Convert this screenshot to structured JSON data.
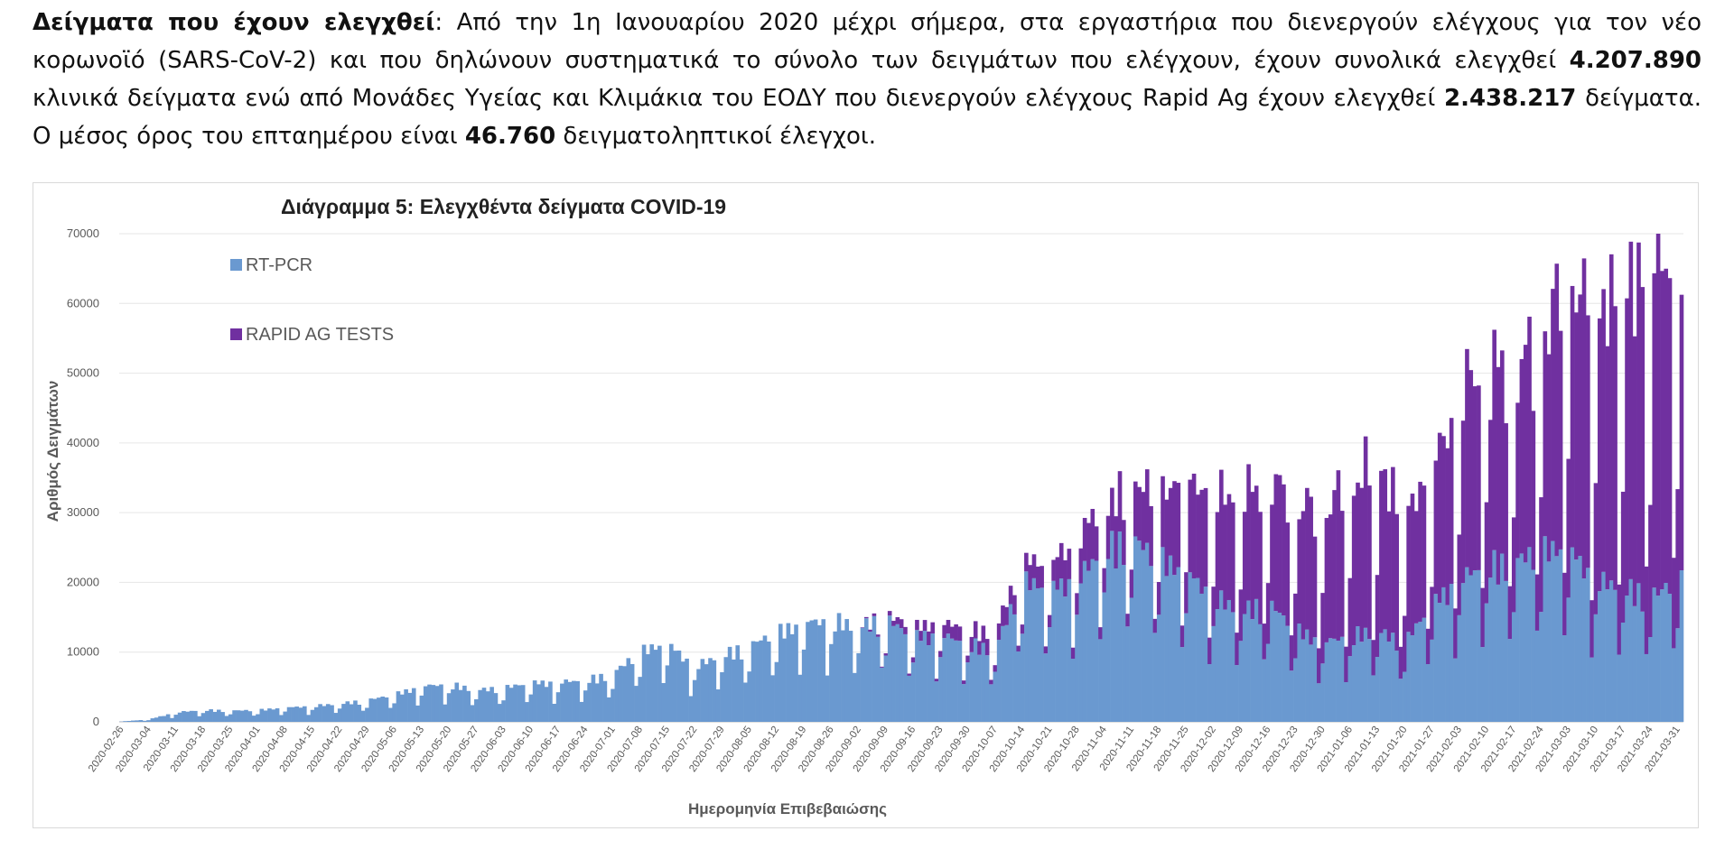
{
  "intro": {
    "lead_bold": "Δείγματα που έχουν ελεγχθεί",
    "part1": ": Από την 1η Ιανουαρίου 2020 μέχρι σήμερα, στα εργαστήρια που διενεργούν ελέγχους για τον νέο κορωνοϊό (SARS-CoV-2) και που δηλώνουν συστηματικά το σύνολο των δειγμάτων που ελέγχουν, έχουν συνολικά ελεγχθεί ",
    "total_pcr": "4.207.890",
    "part2": " κλινικά δείγματα ενώ από Μονάδες Υγείας και Κλιμάκια του ΕΟΔΥ που διενεργούν ελέγχους Rapid Ag έχουν ελεγχθεί ",
    "total_rapid": "2.438.217",
    "part3": " δείγματα. Ο μέσος όρος του επταημέρου είναι ",
    "weekly_avg": "46.760",
    "part4": " δειγματοληπτικοί έλεγχοι."
  },
  "chart_data": {
    "type": "bar",
    "stacked": true,
    "title": "Διάγραμμα 5: Ελεγχθέντα δείγματα COVID-19",
    "xlabel": "Ημερομηνία Επιβεβαιώσης",
    "ylabel": "Αριθμός Δειγμάτων",
    "ylim": [
      0,
      70000
    ],
    "yticks": [
      0,
      10000,
      20000,
      30000,
      40000,
      50000,
      60000,
      70000
    ],
    "grid": true,
    "legend_position": "top-left",
    "x_start": "2020-02-26",
    "x_end": "2021-04-02",
    "x_tick_labels": [
      "2020-02-26",
      "2020-03-04",
      "2020-03-11",
      "2020-03-18",
      "2020-03-25",
      "2020-04-01",
      "2020-04-08",
      "2020-04-15",
      "2020-04-22",
      "2020-04-29",
      "2020-05-06",
      "2020-05-13",
      "2020-05-20",
      "2020-05-27",
      "2020-06-03",
      "2020-06-10",
      "2020-06-17",
      "2020-06-24",
      "2020-07-01",
      "2020-07-08",
      "2020-07-15",
      "2020-07-22",
      "2020-07-29",
      "2020-08-05",
      "2020-08-12",
      "2020-08-19",
      "2020-08-26",
      "2020-09-02",
      "2020-09-09",
      "2020-09-16",
      "2020-09-23",
      "2020-09-30",
      "2020-10-07",
      "2020-10-14",
      "2020-10-21",
      "2020-10-28",
      "2020-11-04",
      "2020-11-11",
      "2020-11-18",
      "2020-11-25",
      "2020-12-02",
      "2020-12-09",
      "2020-12-16",
      "2020-12-23",
      "2020-12-30",
      "2021-01-06",
      "2021-01-13",
      "2021-01-20",
      "2021-01-27",
      "2021-02-03",
      "2021-02-10",
      "2021-02-17",
      "2021-02-24",
      "2021-03-03",
      "2021-03-10",
      "2021-03-17",
      "2021-03-24",
      "2021-03-31"
    ],
    "series": [
      {
        "name": "RT-PCR",
        "color": "#6a99d0",
        "weekly_values": [
          50,
          300,
          1200,
          1500,
          1400,
          1500,
          1800,
          2000,
          2300,
          2700,
          3500,
          4500,
          4800,
          4000,
          4300,
          5000,
          5000,
          5300,
          6000,
          9000,
          10000,
          7000,
          8500,
          9500,
          11500,
          12500,
          13000,
          12000,
          13000,
          11000,
          11000,
          10000,
          9000,
          18000,
          17000,
          18000,
          22000,
          23000,
          21000,
          19000,
          16000,
          14000,
          15000,
          12000,
          10000,
          11000,
          11500,
          10000,
          15000,
          18000,
          20000,
          20000,
          22000,
          22000,
          18000,
          17000,
          16000,
          18000
        ]
      },
      {
        "name": "RAPID AG TESTS",
        "color": "#7030a0",
        "weekly_values": [
          0,
          0,
          0,
          0,
          0,
          0,
          0,
          0,
          0,
          0,
          0,
          0,
          0,
          0,
          0,
          0,
          0,
          0,
          0,
          0,
          0,
          0,
          0,
          0,
          0,
          0,
          0,
          0,
          500,
          1200,
          1500,
          1800,
          2000,
          2500,
          3000,
          5000,
          5500,
          6500,
          8000,
          11000,
          12000,
          14000,
          15000,
          15000,
          16000,
          18000,
          20000,
          15000,
          16000,
          22000,
          25000,
          22000,
          26000,
          32000,
          32000,
          35000,
          40000,
          38000
        ]
      }
    ]
  }
}
